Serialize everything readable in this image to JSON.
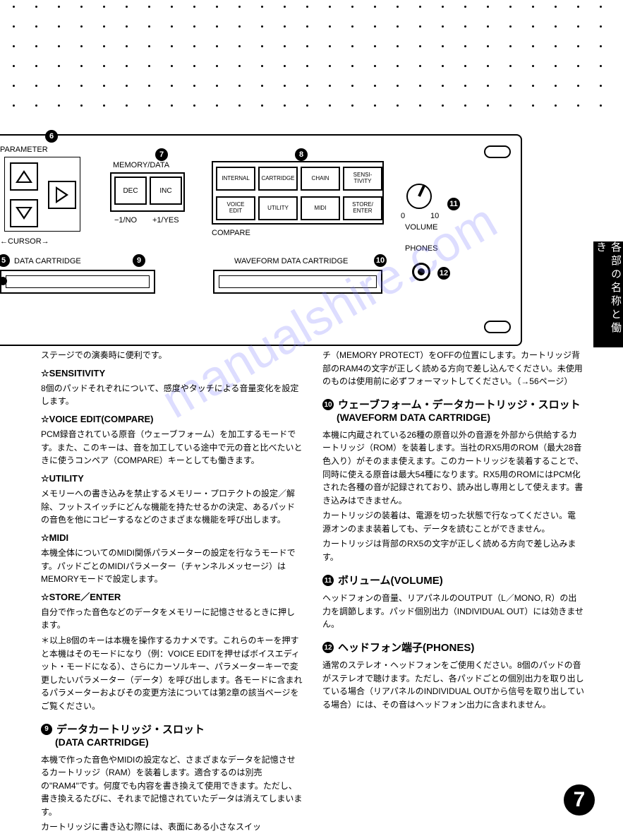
{
  "dots": {
    "rows": 6,
    "cols": 27,
    "startX": 18,
    "startY": 8,
    "gapX": 32,
    "gapY": 28
  },
  "panel": {
    "parameter_label": "PARAMETER",
    "cursor_label": "CURSOR",
    "memory_data_label": "MEMORY/DATA",
    "dec_label": "DEC",
    "inc_label": "INC",
    "minus1_label": "−1/NO",
    "plus1_label": "+1/YES",
    "compare_label": "COMPARE",
    "grid": {
      "row1": [
        "INTERNAL",
        "CARTRIDGE",
        "CHAIN",
        "SENSI-\nTIVITY"
      ],
      "row2": [
        "VOICE\nEDIT",
        "UTILITY",
        "MIDI",
        "STORE/\nENTER"
      ]
    },
    "data_cart_label": "DATA CARTRIDGE",
    "wave_cart_label": "WAVEFORM DATA CARTRIDGE",
    "volume_label": "VOLUME",
    "vol_0": "0",
    "vol_10": "10",
    "phones_label": "PHONES",
    "badges": {
      "b5": "5",
      "b6": "6",
      "b7": "7",
      "b8": "8",
      "b9": "9",
      "b10": "10",
      "b11": "11",
      "b12": "12"
    }
  },
  "sidebar": "各部の名称と働き",
  "watermark": "manualshire.com",
  "left_col": {
    "intro": "ステージでの演奏時に便利です。",
    "sensitivity_h": "☆SENSITIVITY",
    "sensitivity_p": "8個のパッドそれぞれについて、感度やタッチによる音量変化を設定します。",
    "voiceedit_h": "☆VOICE EDIT(COMPARE)",
    "voiceedit_p": "PCM録音されている原音（ウェーブフォーム）を加工するモードです。また、このキーは、音を加工している途中で元の音と比べたいときに使うコンペア（COMPARE）キーとしても働きます。",
    "utility_h": "☆UTILITY",
    "utility_p": "メモリーへの書き込みを禁止するメモリー・プロテクトの設定／解除、フットスイッチにどんな機能を持たせるかの決定、あるパッドの音色を他にコピーするなどのさまざまな機能を呼び出します。",
    "midi_h": "☆MIDI",
    "midi_p": "本機全体についてのMIDI関係パラメーターの設定を行なうモードです。パッドごとのMIDIパラメーター（チャンネルメッセージ）はMEMORYモードで設定します。",
    "store_h": "☆STORE／ENTER",
    "store_p1": "自分で作った音色などのデータをメモリーに記憶させるときに押します。",
    "store_p2": "＊以上8個のキーは本機を操作するカナメです。これらのキーを押すと本機はそのモードになり（例：VOICE EDITを押せばボイスエディット・モードになる）、さらにカーソルキー、パラメーターキーで変更したいパラメーター（データ）を呼び出します。各モードに含まれるパラメーターおよびその変更方法については第2章の該当ページをご覧ください。",
    "datacart_h_num": "❾",
    "datacart_h": "データカートリッジ・スロット",
    "datacart_h_sub": "(DATA CARTRIDGE)",
    "datacart_p1": "本機で作った音色やMIDIの設定など、さまざまなデータを記憶させるカートリッジ（RAM）を装着します。適合するのは別売の\"RAM4\"です。何度でも内容を書き換えて使用できます。ただし、書き換えるたびに、それまで記憶されていたデータは消えてしまいます。",
    "datacart_p2": "カートリッジに書き込む際には、表面にある小さなスイッ"
  },
  "right_col": {
    "cont": "チ（MEMORY PROTECT）をOFFの位置にします。カートリッジ背部のRAM4の文字が正しく読める方向で差し込んでください。未使用のものは使用前に必ずフォーマットしてください。（→56ページ）",
    "wave_h_num": "❿",
    "wave_h": "ウェーブフォーム・データカートリッジ・スロット",
    "wave_h_sub": "(WAVEFORM DATA CARTRIDGE)",
    "wave_p1": "本機に内蔵されている26種の原音以外の音源を外部から供給するカートリッジ（ROM）を装着します。当社のRX5用のROM（最大28音色入り）がそのまま使えます。このカートリッジを装着することで、同時に使える原音は最大54種になります。RX5用のROMにはPCM化された各種の音が記録されており、読み出し専用として使えます。書き込みはできません。",
    "wave_p2": "カートリッジの装着は、電源を切った状態で行なってください。電源オンのまま装着しても、データを読むことができません。",
    "wave_p3": "カートリッジは背部のRX5の文字が正しく読める方向で差し込みます。",
    "vol_h_num": "⓫",
    "vol_h": "ボリューム(VOLUME)",
    "vol_p": "ヘッドフォンの音量、リアパネルのOUTPUT（L／MONO, R）の出力を調節します。パッド個別出力（INDIVIDUAL OUT）には効きません。",
    "phones_h_num": "⓬",
    "phones_h": "ヘッドフォン端子(PHONES)",
    "phones_p": "通常のステレオ・ヘッドフォンをご使用ください。8個のパッドの音がステレオで聴けます。ただし、各パッドごとの個別出力を取り出している場合（リアパネルのINDIVIDUAL OUTから信号を取り出している場合）には、その音はヘッドフォン出力に含まれません。"
  },
  "page_number": "7"
}
